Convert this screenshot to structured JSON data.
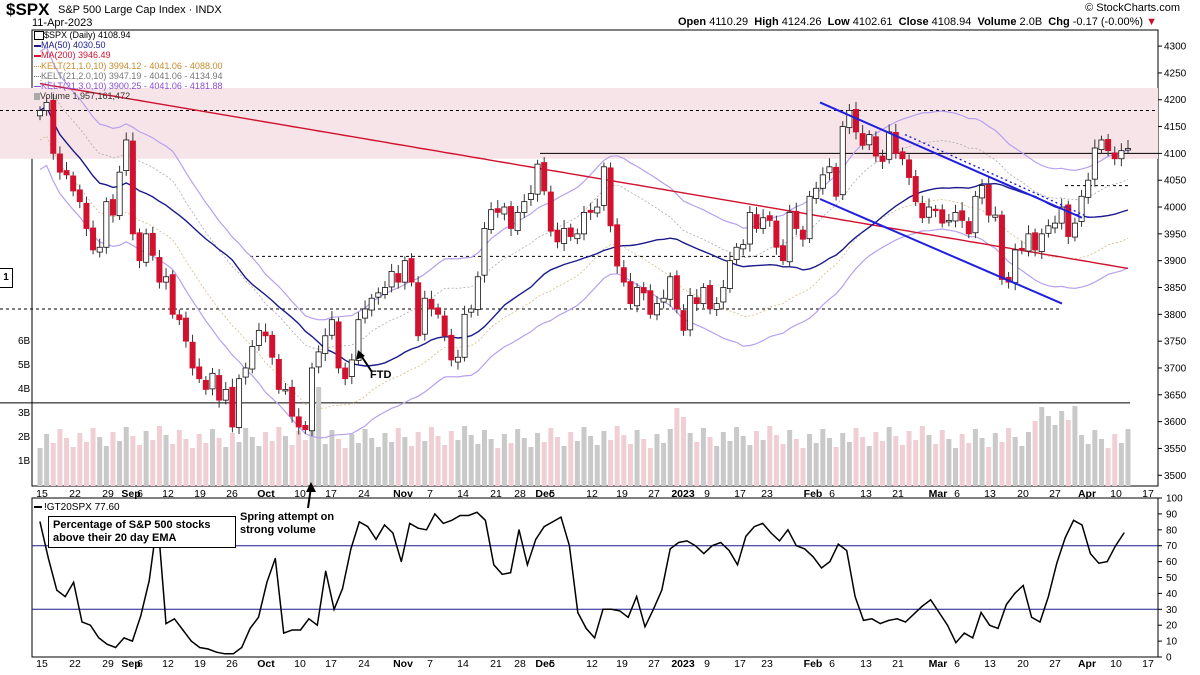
{
  "header": {
    "symbol": "$SPX",
    "name": "S&P 500 Large Cap Index · INDX",
    "date": "11-Apr-2023",
    "copyright": "© StockCharts.com",
    "open_label": "Open",
    "open": "4110.29",
    "high_label": "High",
    "high": "4124.26",
    "low_label": "Low",
    "low": "4102.61",
    "close_label": "Close",
    "close": "4108.94",
    "volume_label": "Volume",
    "volume": "2.0B",
    "chg_label": "Chg",
    "chg": "-0.17 (-0.00%)",
    "chg_arrow": "▼"
  },
  "legend": {
    "spx": "$SPX (Daily) 4108.94",
    "ma50": "MA(50) 4030.50",
    "ma200": "MA(200) 3946.49",
    "kelt1": "KELT(21,1.0,10) 3994.12 - 4041.06 - 4088.00",
    "kelt2": "KELT(21,2.0,10) 3947.19 - 4041.06 - 4134.94",
    "kelt3": "KELT(21,3.0,10) 3900.25 - 4041.06 - 4181.88",
    "volume": "Volume 1,957,161,472"
  },
  "annotations": {
    "ftd": "FTD",
    "spring_line1": "Spring attempt on",
    "spring_line2": "strong volume",
    "left_marker": "1"
  },
  "lower": {
    "legend": "!GT20SPX 77.60",
    "note": "Percentage of S&P 500 stocks above their 20 day EMA"
  },
  "colors": {
    "up": "#ffffff",
    "down": "#d0122f",
    "ma50": "#1a1a8c",
    "ma200": "#d0122f",
    "kelt": "#b7a0ee",
    "zone": "#f7e4e8",
    "trend": "#1f1fe0"
  },
  "chart_data": [
    {
      "type": "candlestick",
      "title": "$SPX S&P 500 Large Cap Index · INDX",
      "ylim": [
        3480,
        4330
      ],
      "y_ticks": [
        3500,
        3550,
        3600,
        3650,
        3700,
        3750,
        3800,
        3850,
        3900,
        3950,
        4000,
        4050,
        4100,
        4150,
        4200,
        4250,
        4300
      ],
      "volume_ticks": [
        "1B",
        "2B",
        "3B",
        "4B",
        "5B",
        "6B"
      ],
      "x_labels": [
        "15",
        "22",
        "29",
        "Sep",
        "6",
        "12",
        "19",
        "26",
        "Oct",
        "10",
        "17",
        "24",
        "Nov",
        "7",
        "14",
        "21",
        "28",
        "Dec",
        "5",
        "12",
        "19",
        "27",
        "2023",
        "9",
        "17",
        "23",
        "Feb",
        "6",
        "13",
        "21",
        "Mar",
        "6",
        "13",
        "20",
        "27",
        "Apr",
        "10",
        "17"
      ],
      "close": [
        4180,
        4195,
        4100,
        4065,
        4060,
        4030,
        4010,
        3960,
        3920,
        3925,
        4010,
        3985,
        4065,
        4125,
        3950,
        3900,
        3950,
        3910,
        3860,
        3870,
        3800,
        3790,
        3750,
        3700,
        3680,
        3660,
        3690,
        3640,
        3660,
        3590,
        3680,
        3700,
        3740,
        3770,
        3760,
        3720,
        3660,
        3660,
        3610,
        3590,
        3585,
        3700,
        3730,
        3760,
        3790,
        3700,
        3680,
        3715,
        3790,
        3810,
        3830,
        3840,
        3850,
        3880,
        3860,
        3900,
        3860,
        3760,
        3830,
        3810,
        3800,
        3760,
        3715,
        3720,
        3800,
        3810,
        3870,
        3960,
        3995,
        3990,
        4000,
        3960,
        3990,
        4010,
        4025,
        4080,
        4030,
        3955,
        3935,
        3960,
        3945,
        3950,
        3990,
        3990,
        4000,
        4075,
        3965,
        3890,
        3860,
        3820,
        3850,
        3840,
        3800,
        3820,
        3830,
        3870,
        3810,
        3770,
        3835,
        3820,
        3850,
        3810,
        3820,
        3850,
        3900,
        3925,
        3930,
        3990,
        3960,
        3980,
        3975,
        3925,
        3900,
        3990,
        3960,
        3940,
        4020,
        4035,
        4060,
        4075,
        4020,
        4150,
        4180,
        4140,
        4115,
        4135,
        4095,
        4085,
        4140,
        4100,
        4090,
        4055,
        4010,
        3980,
        4000,
        3995,
        3970,
        3975,
        3990,
        3975,
        3950,
        4020,
        4040,
        3985,
        3985,
        3865,
        3860,
        3920,
        3920,
        3950,
        3920,
        3950,
        3965,
        3970,
        4000,
        3945,
        3970,
        4020,
        4050,
        4110,
        4125,
        4105,
        4090,
        4105,
        4109
      ]
    },
    {
      "type": "line",
      "title": "!GT20SPX 77.60",
      "ylim": [
        0,
        100
      ],
      "y_ticks": [
        0,
        10,
        20,
        30,
        40,
        50,
        60,
        70,
        80,
        90,
        100
      ],
      "reference_lines": [
        70,
        30
      ],
      "values": [
        85,
        62,
        42,
        38,
        47,
        22,
        20,
        12,
        8,
        6,
        12,
        10,
        26,
        48,
        87,
        21,
        24,
        17,
        10,
        6,
        5,
        3,
        2,
        2,
        6,
        18,
        25,
        47,
        62,
        15,
        17,
        17,
        24,
        20,
        54,
        30,
        43,
        68,
        85,
        82,
        74,
        83,
        78,
        60,
        84,
        81,
        80,
        90,
        84,
        86,
        89,
        89,
        91,
        86,
        58,
        52,
        53,
        80,
        58,
        74,
        82,
        85,
        88,
        70,
        28,
        18,
        12,
        30,
        30,
        29,
        25,
        38,
        19,
        30,
        42,
        68,
        72,
        73,
        70,
        65,
        70,
        72,
        67,
        58,
        76,
        82,
        84,
        78,
        73,
        80,
        70,
        68,
        63,
        56,
        60,
        71,
        67,
        38,
        23,
        24,
        21,
        23,
        24,
        22,
        27,
        32,
        36,
        28,
        20,
        9,
        15,
        12,
        28,
        20,
        18,
        33,
        40,
        45,
        25,
        22,
        38,
        59,
        75,
        86,
        83,
        65,
        59,
        60,
        70,
        78
      ]
    }
  ]
}
